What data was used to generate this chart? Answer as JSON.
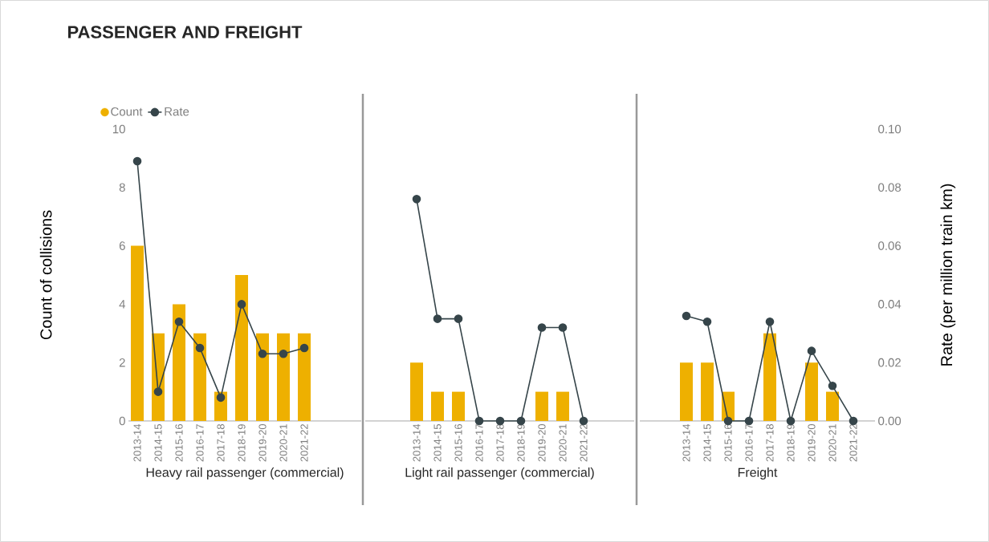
{
  "chart_data": [
    {
      "type": "bar",
      "title": "PASSENGER AND FREIGHT",
      "xlabel": "Heavy rail passenger (commercial)",
      "ylabel": "Count of collisions",
      "categories": [
        "2013-14",
        "2014-15",
        "2015-16",
        "2016-17",
        "2017-18",
        "2018-19",
        "2019-20",
        "2020-21",
        "2021-22"
      ],
      "series": [
        {
          "name": "Count",
          "color": "#eeb000",
          "values": [
            6,
            3,
            4,
            3,
            1,
            5,
            3,
            3,
            3
          ]
        },
        {
          "name": "Rate",
          "type": "line",
          "axis": "y2",
          "color": "#36454a",
          "values": [
            0.089,
            0.01,
            0.034,
            0.025,
            0.008,
            0.04,
            0.023,
            0.023,
            0.025
          ]
        }
      ],
      "ylim": [
        0,
        10
      ],
      "yticks": [
        0,
        2,
        4,
        6,
        8,
        10
      ],
      "y2lim": [
        0,
        0.1
      ],
      "tick_labels": "xy",
      "marker": "circle",
      "legend": "top left"
    },
    {
      "type": "bar",
      "xlabel": "Light rail passenger (commercial)",
      "categories": [
        "2013-14",
        "2014-15",
        "2015-16",
        "2016-17",
        "2017-18",
        "2018-19",
        "2019-20",
        "2020-21",
        "2021-22"
      ],
      "series": [
        {
          "color": "#eeb000",
          "values": [
            2,
            1,
            1,
            0,
            0,
            0,
            1,
            1,
            0
          ]
        },
        {
          "type": "line",
          "axis": "y2",
          "color": "#36454a",
          "values": [
            0.076,
            0.035,
            0.035,
            0,
            0,
            0,
            0.032,
            0.032,
            0
          ]
        }
      ],
      "ylim": [
        0,
        10
      ],
      "y2lim": [
        0,
        0.1
      ],
      "tick_labels": "x",
      "marker": "circle"
    },
    {
      "type": "bar",
      "xlabel": "Freight",
      "y2label": "Rate (per million train km)",
      "categories": [
        "2013-14",
        "2014-15",
        "2015-16",
        "2016-17",
        "2017-18",
        "2018-19",
        "2019-20",
        "2020-21",
        "2021-22"
      ],
      "series": [
        {
          "color": "#eeb000",
          "values": [
            2,
            2,
            1,
            0,
            3,
            0,
            2,
            1,
            0
          ]
        },
        {
          "type": "line",
          "axis": "y2",
          "color": "#36454a",
          "values": [
            0.036,
            0.034,
            0,
            0,
            0.034,
            0,
            0.024,
            0.012,
            0
          ]
        }
      ],
      "ylim": [
        0,
        10
      ],
      "y2lim": [
        0,
        0.1
      ],
      "y2ticks": [
        {
          "value": 0,
          "label": "0.00"
        },
        {
          "value": 0.02,
          "label": "0.02"
        },
        {
          "value": 0.04,
          "label": "0.04"
        },
        {
          "value": 0.06,
          "label": "0.06"
        },
        {
          "value": 0.08,
          "label": "0.08"
        },
        {
          "value": 0.1,
          "label": "0.10"
        }
      ],
      "tick_labels": "xy2",
      "marker": "circle"
    }
  ]
}
